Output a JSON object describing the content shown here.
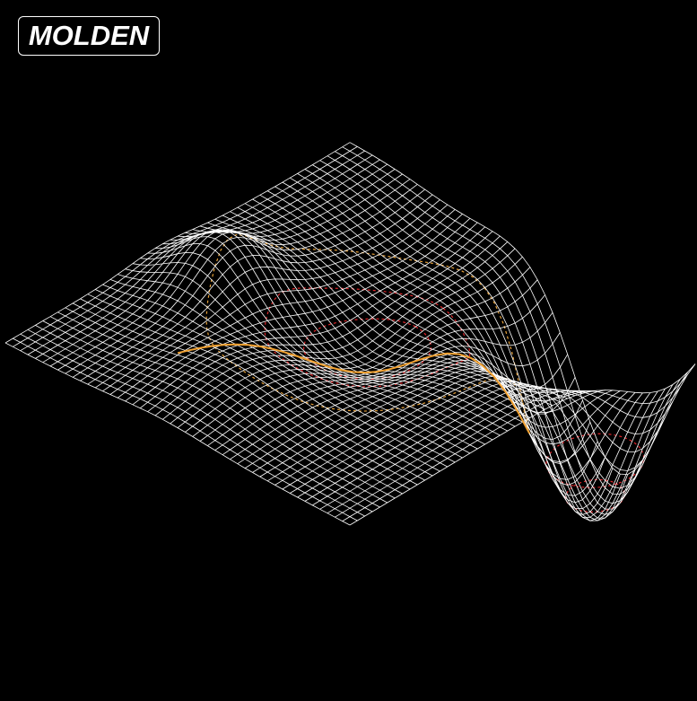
{
  "app": {
    "logo_text": "MOLDEN"
  },
  "colors": {
    "background": "#000000",
    "mesh": "#ffffff",
    "contour_inner": "#e0262b",
    "contour_outer": "#e8a23a",
    "reaction_path": "#f0a030"
  }
}
